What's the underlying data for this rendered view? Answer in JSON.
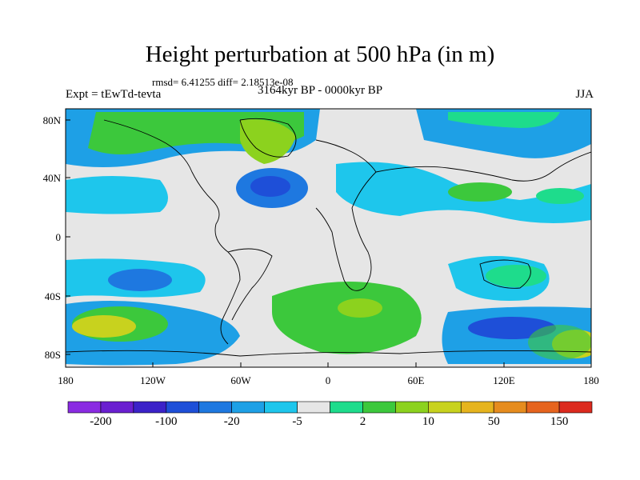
{
  "title": "Height perturbation at 500 hPa (in m)",
  "stats": "rmsd= 6.41255 diff= 2.18513e-08",
  "experiment": "Expt = tEwTd-tevta",
  "period": "3164kyr BP - 0000kyr BP",
  "season": "JJA",
  "lat_ticks": [
    "80N",
    "40N",
    "0",
    "40S",
    "80S"
  ],
  "lon_ticks": [
    "180",
    "120W",
    "60W",
    "0",
    "60E",
    "120E",
    "180"
  ],
  "colorbar": {
    "labels": [
      "-200",
      "-100",
      "-20",
      "-5",
      "2",
      "10",
      "50",
      "150"
    ],
    "colors": [
      "#8a2be2",
      "#6a1fd0",
      "#3b22c8",
      "#1e4fd8",
      "#1e78e0",
      "#1ea0e6",
      "#1ec6ec",
      "#e6e6e6",
      "#1edc8c",
      "#3cc83c",
      "#8cd21e",
      "#c8d21e",
      "#e6b41e",
      "#e68c1e",
      "#e6641e",
      "#dc2a1e"
    ]
  }
}
